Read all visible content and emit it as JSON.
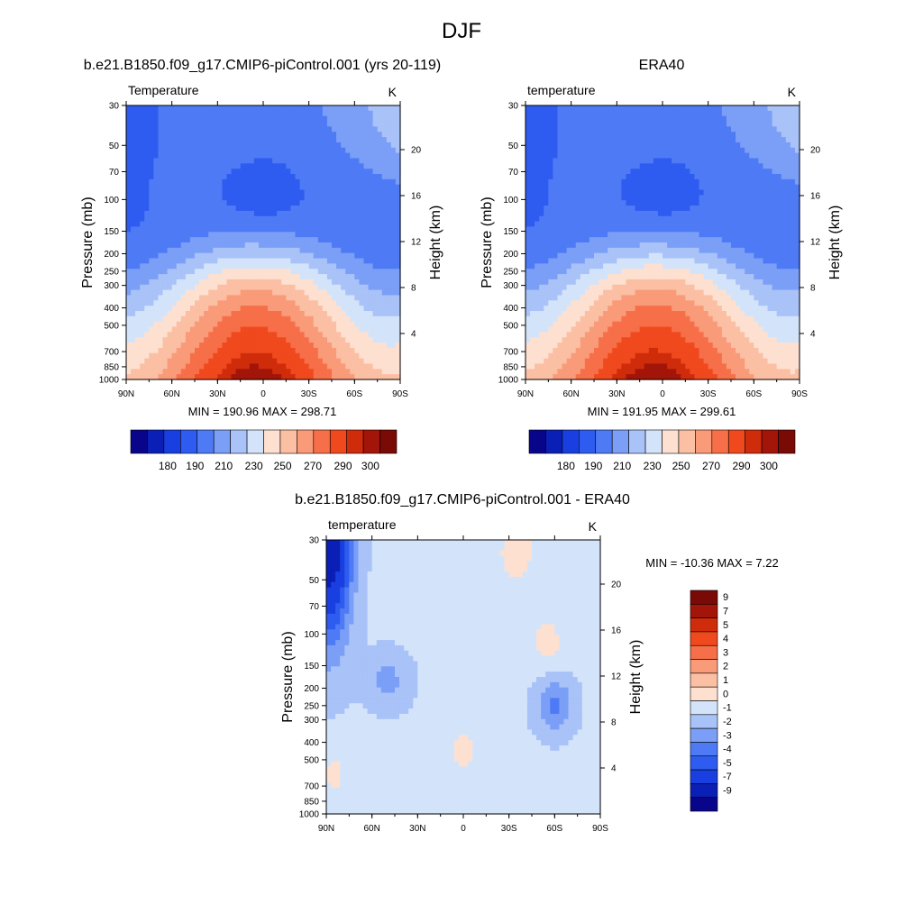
{
  "main_title": "DJF",
  "colors": {
    "temp_palette": [
      "#08058a",
      "#0a1fb5",
      "#1a3fe0",
      "#2f5cf0",
      "#4e7bf5",
      "#7b9ff7",
      "#a9c2f8",
      "#d3e4fa",
      "#fde0d0",
      "#fbbfa4",
      "#f99a78",
      "#f66f48",
      "#f0491e",
      "#cf2c0b",
      "#a31509",
      "#7a0a05"
    ],
    "diff_palette": [
      "#08058a",
      "#0a1fb5",
      "#1a3fe0",
      "#2f5cf0",
      "#4e7bf5",
      "#7b9ff7",
      "#a9c2f8",
      "#d3e4fa",
      "#fde0d0",
      "#fbbfa4",
      "#f99a78",
      "#f66f48",
      "#f0491e",
      "#cf2c0b",
      "#a31509",
      "#7a0a05"
    ]
  },
  "chart_data": [
    {
      "type": "heatmap",
      "panel": "model",
      "title": "b.e21.B1850.f09_g17.CMIP6-piControl.001 (yrs 20-119)",
      "left_label": "Temperature",
      "right_label": "K",
      "xlabel": "",
      "ylabel": "Pressure (mb)",
      "ylabel_right": "Height (km)",
      "x_ticks": [
        "90N",
        "60N",
        "30N",
        "0",
        "30S",
        "60S",
        "90S"
      ],
      "y_ticks": [
        "30",
        "50",
        "70",
        "100",
        "150",
        "200",
        "250",
        "300",
        "400",
        "500",
        "700",
        "850",
        "1000"
      ],
      "y_ticks_right": [
        "20",
        "16",
        "12",
        "8",
        "4"
      ],
      "ylim": [
        1000,
        30
      ],
      "xlim": [
        90,
        -90
      ],
      "min_max": "MIN = 190.96  MAX = 298.71",
      "min": 190.96,
      "max": 298.71,
      "colorbar_labels": [
        "180",
        "190",
        "210",
        "230",
        "250",
        "270",
        "290",
        "300"
      ],
      "colorbar_levels": [
        180,
        185,
        190,
        200,
        210,
        220,
        230,
        240,
        250,
        260,
        270,
        280,
        290,
        295,
        300
      ],
      "cold_core_at_100mb_equator": 192,
      "surface_equator": 298
    },
    {
      "type": "heatmap",
      "panel": "obs",
      "title": "ERA40",
      "left_label": "temperature",
      "right_label": "K",
      "xlabel": "",
      "ylabel": "Pressure (mb)",
      "ylabel_right": "Height (km)",
      "x_ticks": [
        "90N",
        "60N",
        "30N",
        "0",
        "30S",
        "60S",
        "90S"
      ],
      "y_ticks": [
        "30",
        "50",
        "70",
        "100",
        "150",
        "200",
        "250",
        "300",
        "400",
        "500",
        "700",
        "850",
        "1000"
      ],
      "y_ticks_right": [
        "20",
        "16",
        "12",
        "8",
        "4"
      ],
      "ylim": [
        1000,
        30
      ],
      "xlim": [
        90,
        -90
      ],
      "min_max": "MIN = 191.95  MAX = 299.61",
      "min": 191.95,
      "max": 299.61,
      "colorbar_labels": [
        "180",
        "190",
        "210",
        "230",
        "250",
        "270",
        "290",
        "300"
      ],
      "colorbar_levels": [
        180,
        185,
        190,
        200,
        210,
        220,
        230,
        240,
        250,
        260,
        270,
        280,
        290,
        295,
        300
      ],
      "cold_core_at_100mb_equator": 193,
      "surface_equator": 299
    },
    {
      "type": "heatmap",
      "panel": "difference",
      "title": "b.e21.B1850.f09_g17.CMIP6-piControl.001 - ERA40",
      "left_label": "temperature",
      "right_label": "K",
      "xlabel": "",
      "ylabel": "Pressure (mb)",
      "ylabel_right": "Height (km)",
      "x_ticks": [
        "90N",
        "60N",
        "30N",
        "0",
        "30S",
        "60S",
        "90S"
      ],
      "y_ticks": [
        "30",
        "50",
        "70",
        "100",
        "150",
        "200",
        "250",
        "300",
        "400",
        "500",
        "700",
        "850",
        "1000"
      ],
      "y_ticks_right": [
        "20",
        "16",
        "12",
        "8",
        "4"
      ],
      "ylim": [
        1000,
        30
      ],
      "xlim": [
        90,
        -90
      ],
      "min_max": "MIN = -10.36  MAX =   7.22",
      "min": -10.36,
      "max": 7.22,
      "colorbar_labels": [
        "9",
        "7",
        "5",
        "4",
        "3",
        "2",
        "1",
        "0",
        "-1",
        "-2",
        "-3",
        "-4",
        "-5",
        "-7",
        "-9"
      ],
      "colorbar_levels": [
        -9,
        -7,
        -5,
        -4,
        -3,
        -2,
        -1,
        0,
        1,
        2,
        3,
        4,
        5,
        7,
        9
      ]
    }
  ]
}
